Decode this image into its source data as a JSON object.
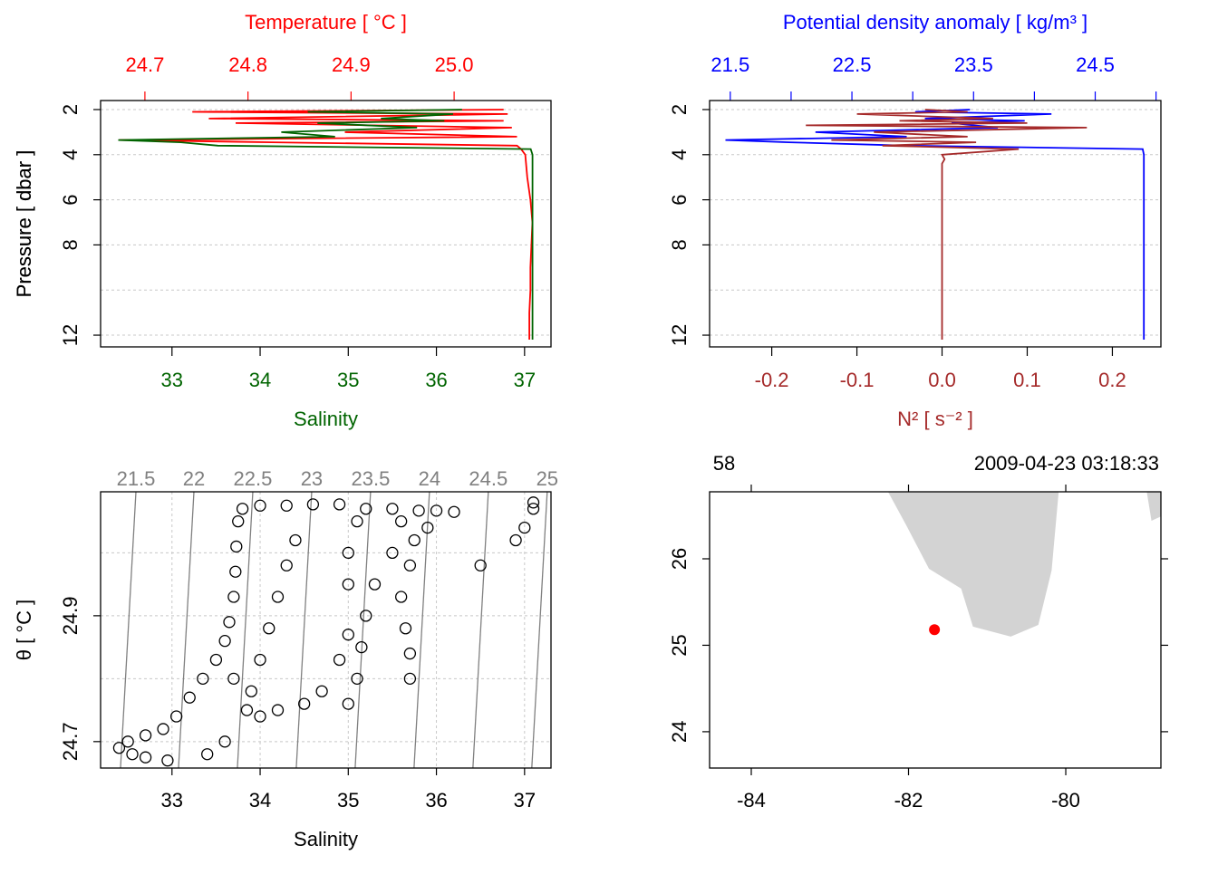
{
  "chart_data": [
    {
      "type": "profile",
      "y": [
        2.0,
        2.1,
        2.2,
        2.4,
        2.5,
        2.6,
        2.8,
        3.0,
        3.2,
        3.35,
        3.45,
        3.6,
        3.75,
        4.0,
        5,
        6,
        7,
        8,
        9,
        10,
        11,
        12.2
      ],
      "ylim": [
        1.6,
        12.52
      ],
      "yticks": [
        2,
        4,
        6,
        8,
        12
      ],
      "ygrid": [
        2,
        4,
        6,
        8,
        10,
        12
      ],
      "ylabel": "Pressure [ dbar ]",
      "top": {
        "label": "Temperature [ °C ]",
        "color": "#ff0000",
        "xlim": [
          24.657,
          25.094
        ],
        "xticks": [
          24.7,
          24.8,
          24.9,
          {
            "value": 25.0,
            "label": "25.0"
          }
        ],
        "values": [
          25.048,
          24.746,
          25.052,
          24.762,
          25.048,
          24.788,
          25.056,
          24.894,
          25.061,
          24.675,
          24.823,
          25.061,
          25.065,
          25.069,
          25.071,
          25.074,
          25.076,
          25.075,
          25.074,
          25.074,
          25.073,
          25.073
        ]
      },
      "bottom": {
        "label": "Salinity",
        "color": "#006400",
        "xlim": [
          32.19,
          37.3
        ],
        "xticks": [
          33,
          34,
          35,
          36,
          37
        ],
        "values": [
          36.29,
          34.54,
          36.19,
          35.37,
          36.09,
          34.65,
          35.78,
          34.24,
          34.85,
          32.39,
          33.1,
          33.52,
          37.07,
          37.09,
          37.09,
          37.09,
          37.09,
          37.09,
          37.09,
          37.09,
          37.09,
          37.09
        ]
      }
    },
    {
      "type": "profile",
      "y": [
        2.0,
        2.1,
        2.2,
        2.4,
        2.5,
        2.6,
        2.7,
        2.8,
        3.0,
        3.2,
        3.35,
        3.45,
        3.6,
        3.75,
        4.0,
        4.2,
        4.4,
        5,
        6,
        7,
        8,
        9,
        10,
        11,
        12.2
      ],
      "ylim": [
        1.6,
        12.52
      ],
      "yticks": [
        2,
        4,
        6,
        8,
        12
      ],
      "ygrid": [
        2,
        4,
        6,
        8,
        10,
        12
      ],
      "ylabel": "Pressure [ dbar ]",
      "top": {
        "label": "Potential density anomaly [ kg/m³ ]",
        "color": "#0000ff",
        "xlim": [
          21.33,
          25.04
        ],
        "xticks": [
          21.5,
          22.5,
          23.5,
          24.5
        ],
        "xminor": [
          22,
          23,
          24,
          25
        ],
        "values": [
          23.47,
          23.02,
          24.14,
          23.1,
          23.92,
          23.32,
          23.5,
          23.7,
          22.2,
          22.95,
          21.46,
          21.98,
          22.95,
          24.89,
          24.9,
          24.9,
          24.9,
          24.9,
          24.9,
          24.9,
          24.9,
          24.9,
          24.9,
          24.9,
          24.9
        ]
      },
      "bottom": {
        "label": "N² [ s⁻² ]",
        "color": "#a52a2a",
        "xlim": [
          -0.273,
          0.257
        ],
        "xticks": [
          -0.2,
          -0.1,
          {
            "value": 0.0,
            "label": "0.0"
          },
          0.1,
          0.2
        ],
        "values": [
          -0.02,
          0.03,
          -0.1,
          0.06,
          -0.05,
          0.1,
          -0.16,
          0.17,
          -0.08,
          0.03,
          -0.13,
          0.04,
          -0.07,
          0.09,
          0.0,
          0.003,
          0.0,
          0.0,
          0.0,
          0.0,
          0.0,
          0.0,
          0.0,
          0.0,
          0.0
        ]
      }
    },
    {
      "type": "scatter",
      "x": [
        32.4,
        32.5,
        32.7,
        32.9,
        33.05,
        33.2,
        33.35,
        33.5,
        33.6,
        33.65,
        33.7,
        33.72,
        33.73,
        33.75,
        33.8,
        34.0,
        34.3,
        34.6,
        34.9,
        34.4,
        34.3,
        34.2,
        34.1,
        34.0,
        33.9,
        33.85,
        34.0,
        34.2,
        34.5,
        34.7,
        34.9,
        35.0,
        35.0,
        35.0,
        35.1,
        35.2,
        35.5,
        35.0,
        35.1,
        35.15,
        35.2,
        35.3,
        35.5,
        35.6,
        35.8,
        36.0,
        36.2,
        35.7,
        35.6,
        35.65,
        35.7,
        35.7,
        35.75,
        35.9,
        36.5,
        36.9,
        37.0,
        37.1,
        37.1,
        33.4,
        32.95,
        32.7,
        32.55,
        33.7,
        33.6
      ],
      "values": [
        24.69,
        24.7,
        24.71,
        24.72,
        24.74,
        24.77,
        24.8,
        24.83,
        24.86,
        24.89,
        24.93,
        24.97,
        25.01,
        25.05,
        25.07,
        25.075,
        25.075,
        25.077,
        25.077,
        25.02,
        24.98,
        24.93,
        24.88,
        24.83,
        24.78,
        24.75,
        24.74,
        24.75,
        24.76,
        24.78,
        24.83,
        24.87,
        24.95,
        25.0,
        25.05,
        25.07,
        25.07,
        24.76,
        24.8,
        24.85,
        24.9,
        24.95,
        25.0,
        25.05,
        25.067,
        25.067,
        25.065,
        24.98,
        24.93,
        24.88,
        24.84,
        24.8,
        25.02,
        25.04,
        24.98,
        25.02,
        25.04,
        25.07,
        25.08,
        24.68,
        24.67,
        24.675,
        24.68,
        24.8,
        24.7
      ],
      "color": "#000000",
      "xlim": [
        32.19,
        37.3
      ],
      "xticks": [
        33,
        34,
        35,
        36,
        37
      ],
      "ylim": [
        24.658,
        25.097
      ],
      "yticks": [
        24.7,
        24.9
      ],
      "ygrid": [
        24.7,
        24.8,
        24.9,
        25.0
      ],
      "xlabel": "Salinity",
      "ylabel": "θ [ °C ]",
      "isopycnal_color": "#808080",
      "isopycnals": [
        {
          "level": 21.5,
          "x": [
            32.416,
            32.591
          ]
        },
        {
          "level": 22,
          "x": [
            33.074,
            33.249
          ]
        },
        {
          "level": 22.5,
          "x": [
            33.742,
            33.917
          ]
        },
        {
          "level": 23,
          "x": [
            34.41,
            34.585
          ]
        },
        {
          "level": 23.5,
          "x": [
            35.078,
            35.253
          ]
        },
        {
          "level": 24,
          "x": [
            35.746,
            35.921
          ]
        },
        {
          "level": 24.5,
          "x": [
            36.414,
            36.589
          ]
        },
        {
          "level": 25,
          "x": [
            37.082,
            37.257
          ]
        }
      ]
    },
    {
      "type": "map",
      "station": "58",
      "time": "2009-04-23 03:18:33",
      "xlim": [
        -84.53,
        -78.79
      ],
      "xticks": [
        -84,
        -82,
        -80
      ],
      "ylim": [
        23.58,
        26.775
      ],
      "yticks": [
        24,
        25,
        26
      ],
      "land_color": "#d3d3d3",
      "land": [
        {
          "lon": [
            -82.26,
            -82.03,
            -81.74,
            -81.33,
            -81.18,
            -80.7,
            -80.35,
            -80.18,
            -80.09
          ],
          "lat": [
            26.775,
            26.39,
            25.885,
            25.655,
            25.215,
            25.1,
            25.235,
            25.865,
            26.775
          ]
        },
        {
          "lon": [
            -78.97,
            -78.91,
            -78.79,
            -78.79
          ],
          "lat": [
            26.775,
            26.44,
            26.49,
            26.775
          ]
        }
      ],
      "point": {
        "lon": -81.67,
        "lat": 25.18,
        "color": "#ff0000"
      }
    }
  ]
}
